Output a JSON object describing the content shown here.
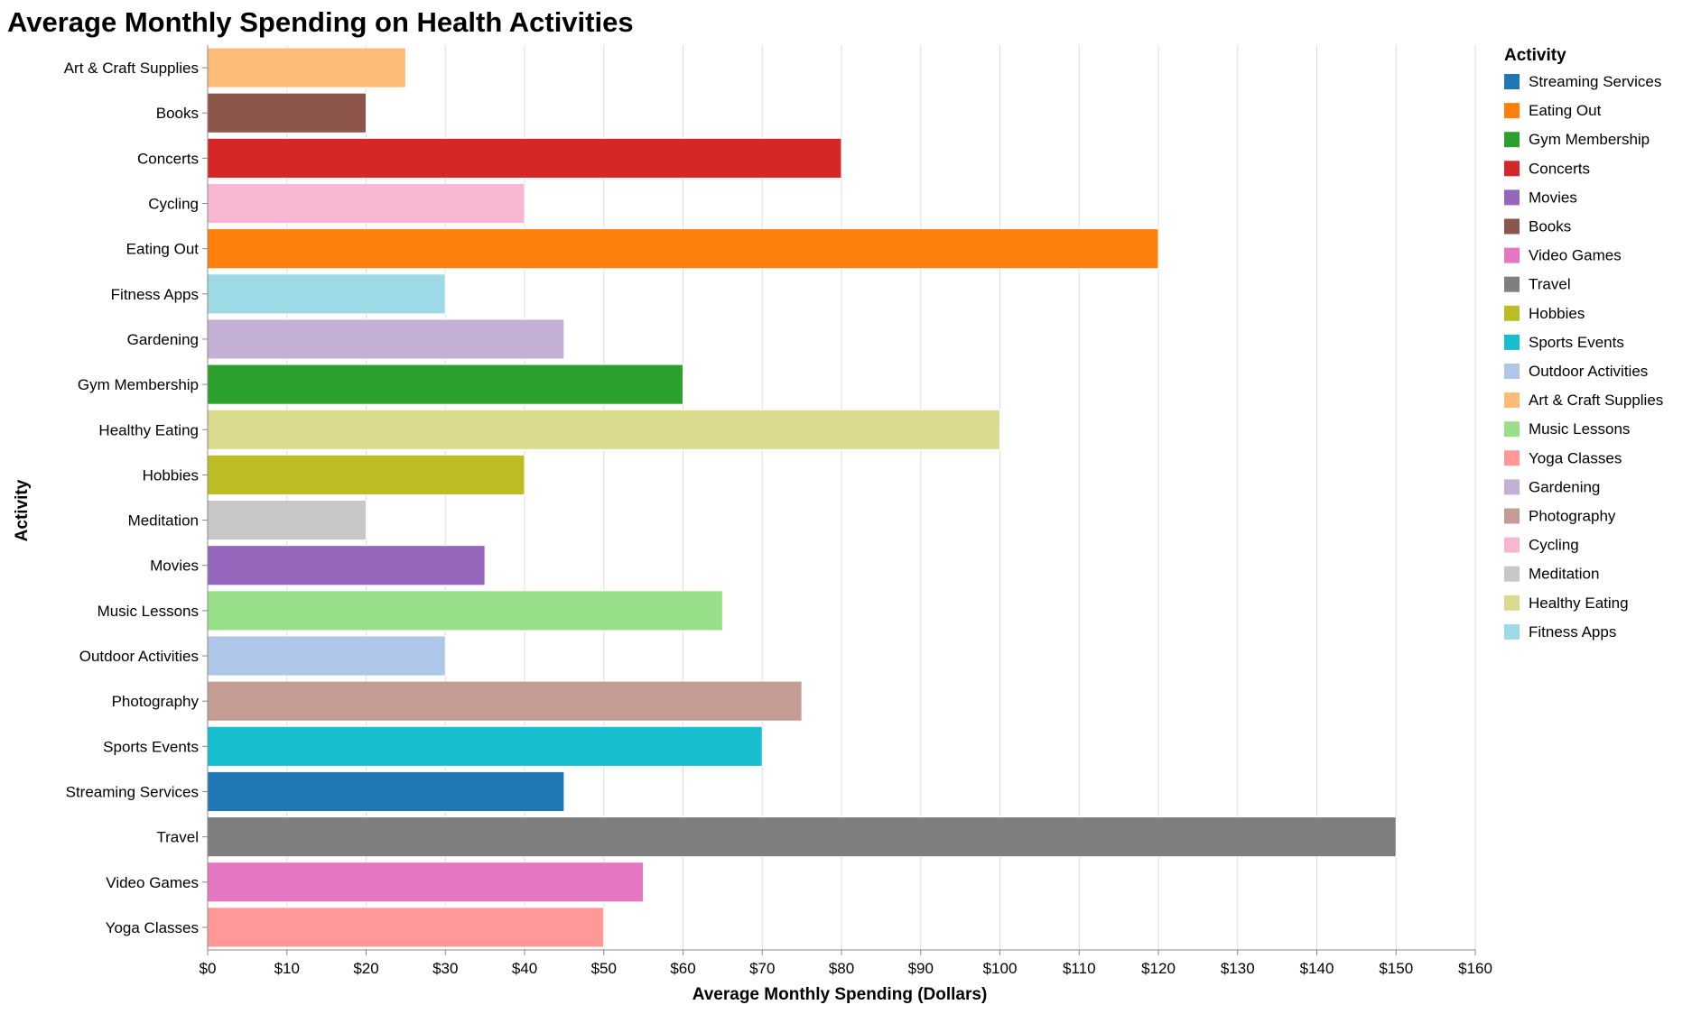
{
  "chart_data": {
    "type": "bar",
    "orientation": "horizontal",
    "title": "Average Monthly Spending on Health Activities",
    "xlabel": "Average Monthly Spending (Dollars)",
    "ylabel": "Activity",
    "xlim": [
      0,
      160
    ],
    "x_ticks": [
      "$0",
      "$10",
      "$20",
      "$30",
      "$40",
      "$50",
      "$60",
      "$70",
      "$80",
      "$90",
      "$100",
      "$110",
      "$120",
      "$130",
      "$140",
      "$150",
      "$160"
    ],
    "grid": true,
    "legend": {
      "title": "Activity",
      "placement": "right"
    },
    "categories": [
      "Art & Craft Supplies",
      "Books",
      "Concerts",
      "Cycling",
      "Eating Out",
      "Fitness Apps",
      "Gardening",
      "Gym Membership",
      "Healthy Eating",
      "Hobbies",
      "Meditation",
      "Movies",
      "Music Lessons",
      "Outdoor Activities",
      "Photography",
      "Sports Events",
      "Streaming Services",
      "Travel",
      "Video Games",
      "Yoga Classes"
    ],
    "values": [
      25,
      20,
      80,
      40,
      120,
      30,
      45,
      60,
      100,
      40,
      20,
      35,
      65,
      30,
      75,
      70,
      45,
      150,
      55,
      50
    ],
    "colors": [
      "#ffbb78",
      "#8c564b",
      "#d62728",
      "#f7b6d2",
      "#ff7f0e",
      "#9edae5",
      "#c5b0d5",
      "#2ca02c",
      "#dbdb8d",
      "#bcbd22",
      "#c7c7c7",
      "#9467bd",
      "#98df8a",
      "#aec7e8",
      "#c49c94",
      "#17becf",
      "#1f77b4",
      "#7f7f7f",
      "#e377c2",
      "#ff9896"
    ],
    "legend_order": [
      "Streaming Services",
      "Eating Out",
      "Gym Membership",
      "Concerts",
      "Movies",
      "Books",
      "Video Games",
      "Travel",
      "Hobbies",
      "Sports Events",
      "Outdoor Activities",
      "Art & Craft Supplies",
      "Music Lessons",
      "Yoga Classes",
      "Gardening",
      "Photography",
      "Cycling",
      "Meditation",
      "Healthy Eating",
      "Fitness Apps"
    ]
  }
}
